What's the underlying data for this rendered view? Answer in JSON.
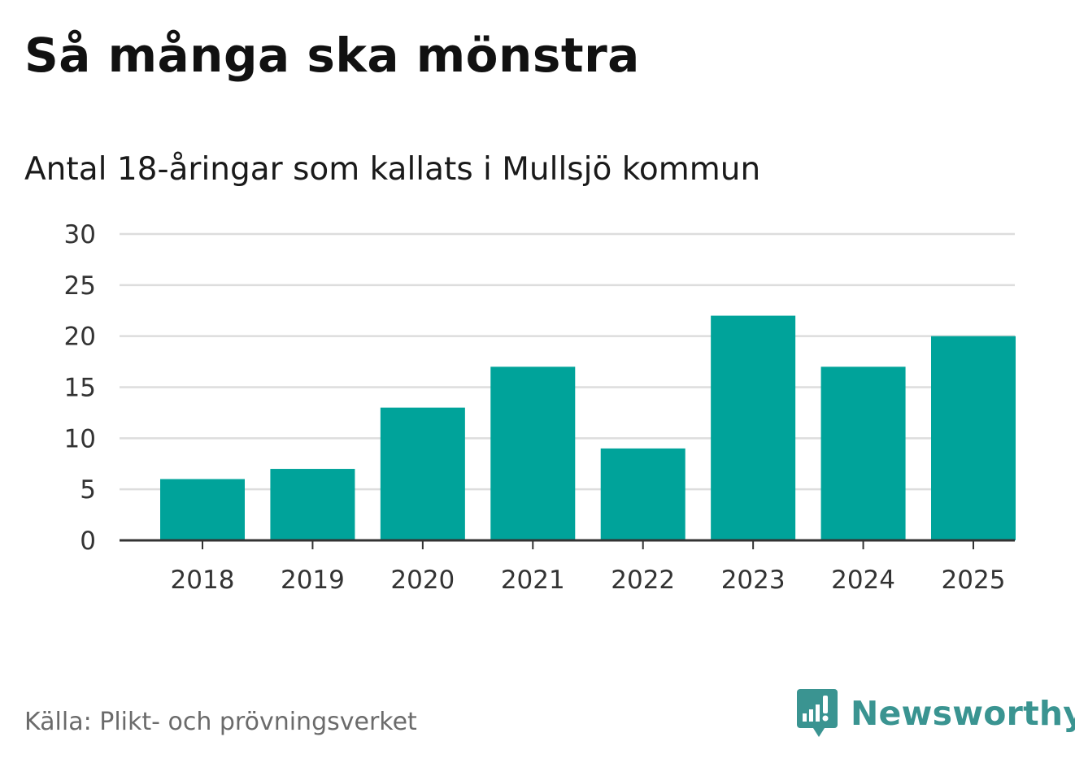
{
  "title": "Så många ska mönstra",
  "subtitle": "Antal 18-åringar som kallats i Mullsjö kommun",
  "source": "Källa: Plikt- och prövningsverket",
  "brand": {
    "name": "Newsworthy",
    "icon": "newsworthy-logo-icon",
    "color": "#3a9491"
  },
  "colors": {
    "bar": "#00a39a",
    "grid": "#dddddd",
    "axis": "#333333"
  },
  "chart_data": {
    "type": "bar",
    "categories": [
      "2018",
      "2019",
      "2020",
      "2021",
      "2022",
      "2023",
      "2024",
      "2025"
    ],
    "values": [
      6,
      7,
      13,
      17,
      9,
      22,
      17,
      20
    ],
    "ylim": [
      0,
      30
    ],
    "yticks": [
      0,
      5,
      10,
      15,
      20,
      25,
      30
    ],
    "grid": true,
    "legend": "none",
    "xlabel": "",
    "ylabel": ""
  }
}
